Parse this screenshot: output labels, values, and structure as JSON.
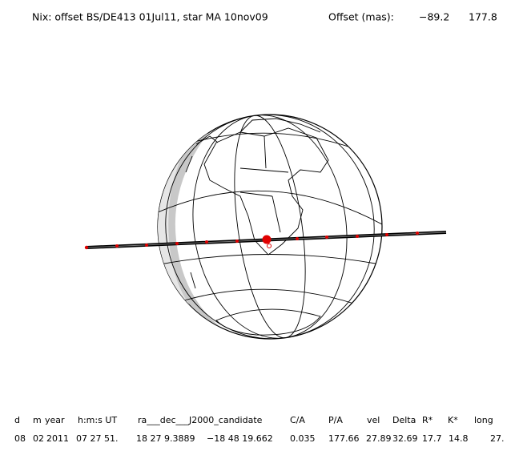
{
  "header": {
    "title": "Nix: offset BS/DE413 01Jul11, star MA 10nov09",
    "offset_label": "Offset (mas):",
    "offset_values": [
      "−89.2",
      "177.8"
    ]
  },
  "table": {
    "columns": [
      "d",
      "m",
      "year",
      "h:m:s UT",
      "ra___dec___J2000_candidate",
      "C/A",
      "P/A",
      "vel",
      "Delta",
      "R*",
      "K*",
      "long"
    ],
    "rows": [
      [
        "08",
        "02",
        "2011",
        "07 27 51.",
        "18 27  9.3889",
        "−18 48  19.662",
        "0.035",
        "177.66",
        "27.89",
        "32.69",
        "17.7",
        "14.8",
        "27."
      ]
    ]
  }
}
